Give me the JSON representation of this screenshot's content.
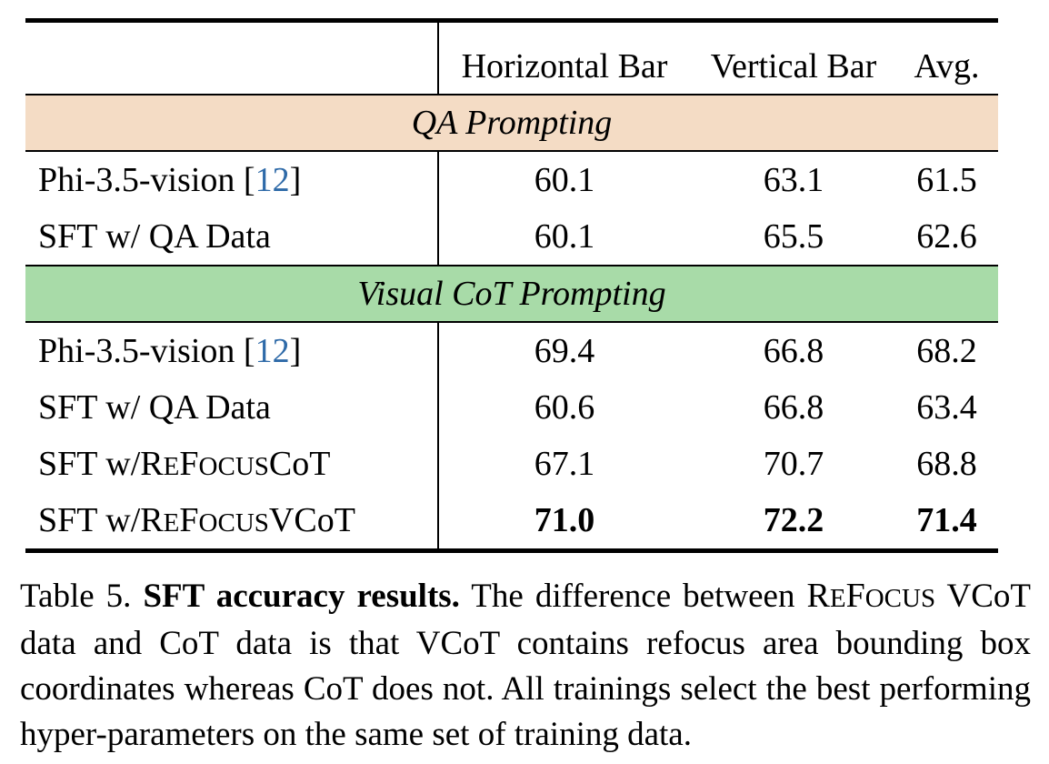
{
  "table": {
    "headers": [
      "Horizontal Bar",
      "Vertical Bar",
      "Avg."
    ],
    "sections": [
      {
        "title": "QA Prompting",
        "rows": [
          {
            "label_pre": "Phi-3.5-vision [",
            "cite": "12",
            "label_post": "]",
            "values": [
              "60.1",
              "63.1",
              "61.5"
            ]
          },
          {
            "label": "SFT w/ QA Data",
            "values": [
              "60.1",
              "65.5",
              "62.6"
            ]
          }
        ]
      },
      {
        "title": "Visual CoT Prompting",
        "rows": [
          {
            "label_pre": "Phi-3.5-vision [",
            "cite": "12",
            "label_post": "]",
            "values": [
              "69.4",
              "66.8",
              "68.2"
            ]
          },
          {
            "label": "SFT w/ QA Data",
            "values": [
              "60.6",
              "66.8",
              "63.4"
            ]
          },
          {
            "label_pre": "SFT w/ ",
            "refocus": "REFOCUS",
            "label_post": " CoT",
            "values": [
              "67.1",
              "70.7",
              "68.8"
            ]
          },
          {
            "label_pre": "SFT w/ ",
            "refocus": "REFOCUS",
            "label_post": " VCoT",
            "values": [
              "71.0",
              "72.2",
              "71.4"
            ]
          }
        ]
      }
    ]
  },
  "caption": {
    "prefix": "Table 5. ",
    "bold": "SFT accuracy results.",
    "text_1": " The difference between ",
    "refocus": "REFOCUS",
    "text_2": " VCoT data and CoT data is that VCoT contains refocus area bounding box coordinates whereas CoT does not. All trainings select the best performing hyper-parameters on the same set of training data."
  }
}
